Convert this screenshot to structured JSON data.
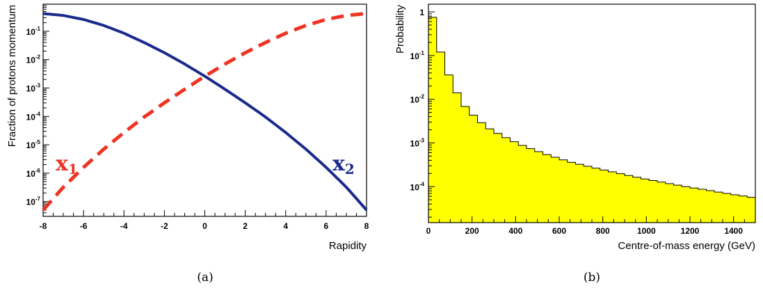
{
  "chart_data": [
    {
      "type": "line",
      "caption": "(a)",
      "xlabel": "Rapidity",
      "ylabel": "Fraction of protons momentum",
      "xlim": [
        -8,
        8
      ],
      "ylim": [
        3e-08,
        0.9
      ],
      "yscale": "log",
      "x_ticks": [
        -8,
        -6,
        -4,
        -2,
        0,
        2,
        4,
        6,
        8
      ],
      "y_ticks": [
        {
          "base": "10",
          "exp": "-7",
          "value": 1e-07
        },
        {
          "base": "10",
          "exp": "-6",
          "value": 1e-06
        },
        {
          "base": "10",
          "exp": "-5",
          "value": 1e-05
        },
        {
          "base": "10",
          "exp": "-4",
          "value": 0.0001
        },
        {
          "base": "10",
          "exp": "-3",
          "value": 0.001
        },
        {
          "base": "10",
          "exp": "-2",
          "value": 0.01
        },
        {
          "base": "10",
          "exp": "-1",
          "value": 0.1
        }
      ],
      "x": [
        -8,
        -7,
        -6,
        -5,
        -4,
        -3,
        -2,
        -1,
        0,
        1,
        2,
        3,
        4,
        5,
        6,
        7,
        8
      ],
      "series": [
        {
          "name": "x",
          "subscript": "1",
          "color": "#ee3322",
          "style": "dashed",
          "values": [
            5e-08,
            3.2e-07,
            1.6e-06,
            7e-06,
            2.7e-05,
            9.5e-05,
            0.0003,
            0.0009,
            0.0026,
            0.007,
            0.0175,
            0.04,
            0.085,
            0.16,
            0.26,
            0.36,
            0.42
          ]
        },
        {
          "name": "x",
          "subscript": "2",
          "color": "#1a2a8c",
          "style": "solid",
          "values": [
            0.42,
            0.36,
            0.26,
            0.16,
            0.085,
            0.04,
            0.0175,
            0.007,
            0.0026,
            0.0009,
            0.0003,
            9.5e-05,
            2.7e-05,
            7e-06,
            1.6e-06,
            3.2e-07,
            5e-08
          ]
        }
      ]
    },
    {
      "type": "histogram",
      "caption": "(b)",
      "xlabel": "Centre-of-mass energy (GeV)",
      "ylabel": "Probability",
      "xlim": [
        0,
        1500
      ],
      "ylim": [
        1.5e-05,
        1.5
      ],
      "yscale": "log",
      "bin_width": 37.5,
      "fill_color": "#ffff00",
      "x_ticks": [
        0,
        200,
        400,
        600,
        800,
        1000,
        1200,
        1400
      ],
      "y_ticks": [
        {
          "base": "10",
          "exp": "-4",
          "value": 0.0001
        },
        {
          "base": "10",
          "exp": "-3",
          "value": 0.001
        },
        {
          "base": "10",
          "exp": "-2",
          "value": 0.01
        },
        {
          "base": "10",
          "exp": "-1",
          "value": 0.1
        },
        {
          "base": "1",
          "exp": "",
          "value": 1
        }
      ],
      "values": [
        0.75,
        0.12,
        0.036,
        0.014,
        0.0068,
        0.0043,
        0.0029,
        0.0021,
        0.00165,
        0.00132,
        0.00107,
        0.00088,
        0.00074,
        0.00063,
        0.00054,
        0.00047,
        0.00041,
        0.00036,
        0.000325,
        0.000292,
        0.000264,
        0.00024,
        0.000218,
        0.000198,
        0.00018,
        0.000164,
        0.00015,
        0.000138,
        0.000127,
        0.000117,
        0.000108,
        0.0001,
        9.3e-05,
        8.7e-05,
        8.1e-05,
        7.5e-05,
        7e-05,
        6.5e-05,
        6.1e-05,
        5.7e-05
      ]
    }
  ]
}
